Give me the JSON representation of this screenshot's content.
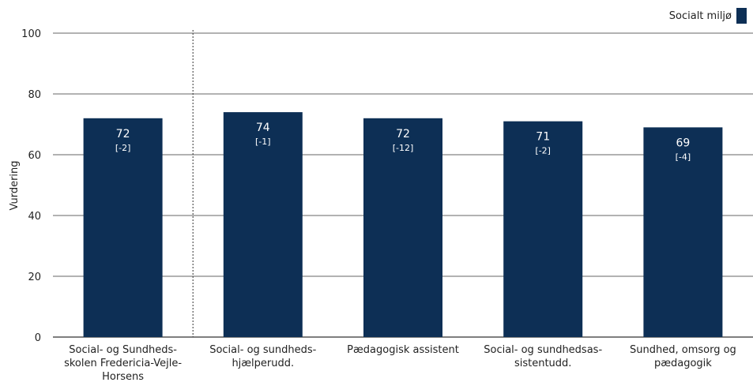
{
  "chart_data": {
    "type": "bar",
    "ylabel": "Vurdering",
    "ylim": [
      0,
      100
    ],
    "yticks": [
      0,
      20,
      40,
      60,
      80,
      100
    ],
    "grid": true,
    "legend_position": "top-right",
    "colors": {
      "bar": "#0d2f55",
      "grid": "#333333",
      "axis": "#333333"
    },
    "series": [
      {
        "name": "Socialt miljø",
        "values": [
          72,
          74,
          72,
          71,
          69
        ]
      }
    ],
    "categories": [
      [
        "Social- og Sundheds-",
        "skolen Fredericia-Vejle-",
        "Horsens"
      ],
      [
        "Social- og sundheds-",
        "hjælperudd."
      ],
      [
        "Pædagogisk assistent"
      ],
      [
        "Social- og sundhedsas-",
        "sistentudd."
      ],
      [
        "Sundhed, omsorg og",
        "pædagogik"
      ]
    ],
    "value_labels": [
      "72",
      "74",
      "72",
      "71",
      "69"
    ],
    "change_labels": [
      "[-2]",
      "[-1]",
      "[-12]",
      "[-2]",
      "[-4]"
    ],
    "separator_after_category": 0
  }
}
